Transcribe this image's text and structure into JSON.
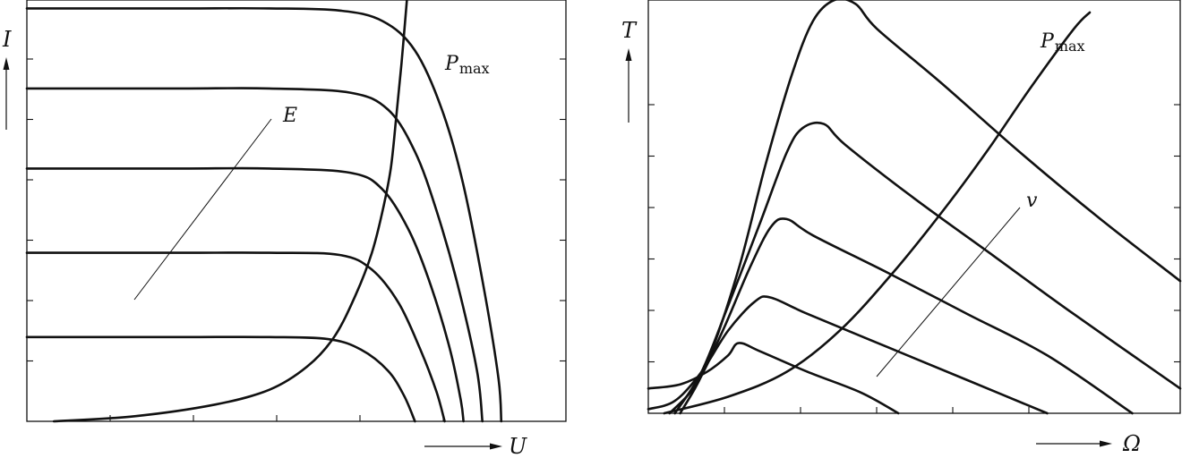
{
  "chart_data": [
    {
      "type": "line",
      "title": "",
      "xlabel": "U",
      "ylabel": "I",
      "xlim": [
        0,
        1
      ],
      "ylim": [
        0,
        1
      ],
      "grid": false,
      "series": [
        {
          "points": [
            [
              0,
              0.98
            ],
            [
              0.15,
              0.98
            ],
            [
              0.3,
              0.98
            ],
            [
              0.45,
              0.98
            ],
            [
              0.58,
              0.975
            ],
            [
              0.66,
              0.95
            ],
            [
              0.72,
              0.88
            ],
            [
              0.77,
              0.74
            ],
            [
              0.81,
              0.56
            ],
            [
              0.85,
              0.3
            ],
            [
              0.875,
              0.1
            ],
            [
              0.88,
              0
            ]
          ]
        },
        {
          "points": [
            [
              0,
              0.79
            ],
            [
              0.15,
              0.79
            ],
            [
              0.3,
              0.79
            ],
            [
              0.45,
              0.79
            ],
            [
              0.6,
              0.78
            ],
            [
              0.67,
              0.74
            ],
            [
              0.72,
              0.64
            ],
            [
              0.76,
              0.5
            ],
            [
              0.8,
              0.32
            ],
            [
              0.835,
              0.12
            ],
            [
              0.845,
              0
            ]
          ]
        },
        {
          "points": [
            [
              0,
              0.6
            ],
            [
              0.15,
              0.6
            ],
            [
              0.3,
              0.6
            ],
            [
              0.45,
              0.6
            ],
            [
              0.6,
              0.59
            ],
            [
              0.66,
              0.55
            ],
            [
              0.71,
              0.45
            ],
            [
              0.75,
              0.32
            ],
            [
              0.785,
              0.17
            ],
            [
              0.805,
              0.05
            ],
            [
              0.81,
              0
            ]
          ]
        },
        {
          "points": [
            [
              0,
              0.4
            ],
            [
              0.15,
              0.4
            ],
            [
              0.3,
              0.4
            ],
            [
              0.45,
              0.4
            ],
            [
              0.58,
              0.395
            ],
            [
              0.64,
              0.36
            ],
            [
              0.69,
              0.28
            ],
            [
              0.73,
              0.17
            ],
            [
              0.76,
              0.07
            ],
            [
              0.775,
              0
            ]
          ]
        },
        {
          "points": [
            [
              0,
              0.2
            ],
            [
              0.15,
              0.2
            ],
            [
              0.3,
              0.2
            ],
            [
              0.45,
              0.2
            ],
            [
              0.56,
              0.195
            ],
            [
              0.62,
              0.17
            ],
            [
              0.67,
              0.12
            ],
            [
              0.7,
              0.06
            ],
            [
              0.72,
              0
            ]
          ]
        },
        {
          "name": "Pmax",
          "points": [
            [
              0.05,
              0
            ],
            [
              0.2,
              0.012
            ],
            [
              0.35,
              0.04
            ],
            [
              0.45,
              0.075
            ],
            [
              0.52,
              0.13
            ],
            [
              0.57,
              0.2
            ],
            [
              0.61,
              0.3
            ],
            [
              0.64,
              0.4
            ],
            [
              0.66,
              0.5
            ],
            [
              0.675,
              0.6
            ],
            [
              0.685,
              0.72
            ],
            [
              0.695,
              0.85
            ],
            [
              0.705,
              1.0
            ]
          ]
        }
      ],
      "annotations": [
        {
          "text": "E",
          "point": [
            0.5,
            0.82
          ]
        },
        {
          "text": "P",
          "subscript": "max",
          "point": [
            0.73,
            0.98
          ]
        }
      ],
      "ytick_count": 6,
      "xtick_count": 5
    },
    {
      "type": "line",
      "title": "",
      "xlabel": "Ω",
      "ylabel": "T",
      "xlim": [
        0,
        1
      ],
      "ylim": [
        0,
        1
      ],
      "grid": false,
      "series": [
        {
          "points": [
            [
              0,
              0.06
            ],
            [
              0.06,
              0.07
            ],
            [
              0.11,
              0.1
            ],
            [
              0.15,
              0.14
            ],
            [
              0.17,
              0.17
            ],
            [
              0.21,
              0.15
            ],
            [
              0.3,
              0.1
            ],
            [
              0.4,
              0.05
            ],
            [
              0.47,
              0
            ]
          ]
        },
        {
          "points": [
            [
              0,
              0.01
            ],
            [
              0.05,
              0.03
            ],
            [
              0.1,
              0.1
            ],
            [
              0.15,
              0.2
            ],
            [
              0.2,
              0.27
            ],
            [
              0.23,
              0.28
            ],
            [
              0.3,
              0.24
            ],
            [
              0.45,
              0.16
            ],
            [
              0.6,
              0.08
            ],
            [
              0.75,
              0
            ]
          ]
        },
        {
          "points": [
            [
              0.04,
              0
            ],
            [
              0.09,
              0.07
            ],
            [
              0.14,
              0.2
            ],
            [
              0.19,
              0.35
            ],
            [
              0.23,
              0.45
            ],
            [
              0.26,
              0.47
            ],
            [
              0.31,
              0.43
            ],
            [
              0.45,
              0.34
            ],
            [
              0.6,
              0.24
            ],
            [
              0.75,
              0.14
            ],
            [
              0.91,
              0
            ]
          ]
        },
        {
          "points": [
            [
              0.05,
              0
            ],
            [
              0.1,
              0.1
            ],
            [
              0.15,
              0.26
            ],
            [
              0.21,
              0.46
            ],
            [
              0.26,
              0.63
            ],
            [
              0.29,
              0.69
            ],
            [
              0.33,
              0.7
            ],
            [
              0.37,
              0.65
            ],
            [
              0.5,
              0.52
            ],
            [
              0.65,
              0.38
            ],
            [
              0.8,
              0.24
            ],
            [
              1.0,
              0.06
            ]
          ]
        },
        {
          "points": [
            [
              0.06,
              0
            ],
            [
              0.11,
              0.12
            ],
            [
              0.17,
              0.35
            ],
            [
              0.22,
              0.6
            ],
            [
              0.27,
              0.82
            ],
            [
              0.31,
              0.95
            ],
            [
              0.35,
              1.0
            ],
            [
              0.39,
              0.99
            ],
            [
              0.43,
              0.93
            ],
            [
              0.55,
              0.8
            ],
            [
              0.7,
              0.63
            ],
            [
              0.85,
              0.47
            ],
            [
              1.0,
              0.32
            ]
          ]
        },
        {
          "name": "Pmax",
          "points": [
            [
              0.03,
              0
            ],
            [
              0.15,
              0.04
            ],
            [
              0.26,
              0.1
            ],
            [
              0.36,
              0.2
            ],
            [
              0.46,
              0.34
            ],
            [
              0.56,
              0.5
            ],
            [
              0.64,
              0.64
            ],
            [
              0.72,
              0.79
            ],
            [
              0.8,
              0.93
            ],
            [
              0.83,
              0.97
            ]
          ]
        }
      ],
      "annotations": [
        {
          "text": "v",
          "point": [
            0.7,
            0.42
          ]
        },
        {
          "text": "P",
          "subscript": "max",
          "point": [
            0.83,
            0.97
          ]
        }
      ],
      "ytick_count": 6,
      "xtick_count": 5
    }
  ]
}
